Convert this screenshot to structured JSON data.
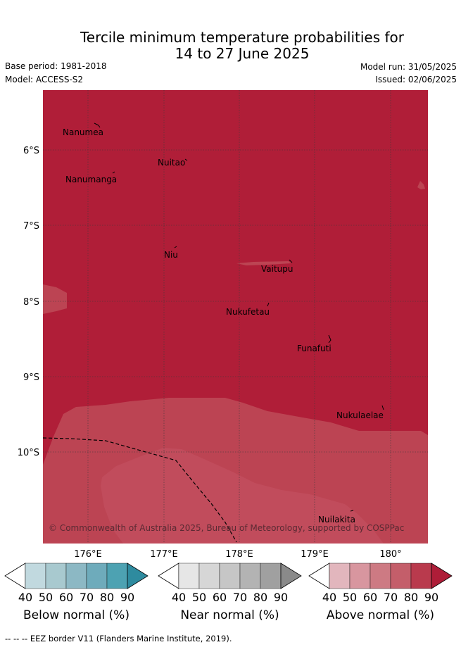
{
  "title": {
    "line1": "Tercile minimum temperature probabilities for",
    "line2": "14 to 27 June 2025"
  },
  "meta": {
    "base_period": "Base period: 1981-2018",
    "model": "Model: ACCESS-S2",
    "model_run": "Model run: 31/05/2025",
    "issued": "Issued: 02/06/2025"
  },
  "map": {
    "background_category": "Above normal, 80-90%",
    "longitudes": [
      "176°E",
      "177°E",
      "178°E",
      "179°E",
      "180°"
    ],
    "latitudes": [
      "6°S",
      "7°S",
      "8°S",
      "9°S",
      "10°S"
    ],
    "places": [
      {
        "name": "Nanumea"
      },
      {
        "name": "Nuitao"
      },
      {
        "name": "Nanumanga"
      },
      {
        "name": "Niu"
      },
      {
        "name": "Vaitupu"
      },
      {
        "name": "Nukufetau"
      },
      {
        "name": "Funafuti"
      },
      {
        "name": "Nukulaelae"
      },
      {
        "name": "Nuilakita"
      }
    ],
    "copyright": "© Commonwealth of Australia 2025, Bureau of Meteorology, supported by COSPPac"
  },
  "legends": [
    {
      "label": "Below normal (%)",
      "ticks": [
        "40",
        "50",
        "60",
        "70",
        "80",
        "90"
      ],
      "colors": [
        "#ffffff",
        "#c1d9df",
        "#a8c9cf",
        "#8cb8c4",
        "#6eabbb",
        "#4da2b2",
        "#2e8b9f"
      ]
    },
    {
      "label": "Near normal (%)",
      "ticks": [
        "40",
        "50",
        "60",
        "70",
        "80",
        "90"
      ],
      "colors": [
        "#ffffff",
        "#e6e6e6",
        "#d6d6d6",
        "#c6c6c6",
        "#b3b3b3",
        "#a0a0a0",
        "#8a8a8a"
      ]
    },
    {
      "label": "Above normal (%)",
      "ticks": [
        "40",
        "50",
        "60",
        "70",
        "80",
        "90"
      ],
      "colors": [
        "#ffffff",
        "#e2b6bd",
        "#d8969f",
        "#cd7a83",
        "#c45e6a",
        "#b93a4d",
        "#ae1d38"
      ]
    }
  ],
  "footer": "-- -- -- EEZ border V11 (Flanders Marine Institute, 2019).",
  "colors": {
    "above_80_90": "#b01e38",
    "above_70_80": "#bc4453",
    "above_60_70": "#c14c5c"
  }
}
